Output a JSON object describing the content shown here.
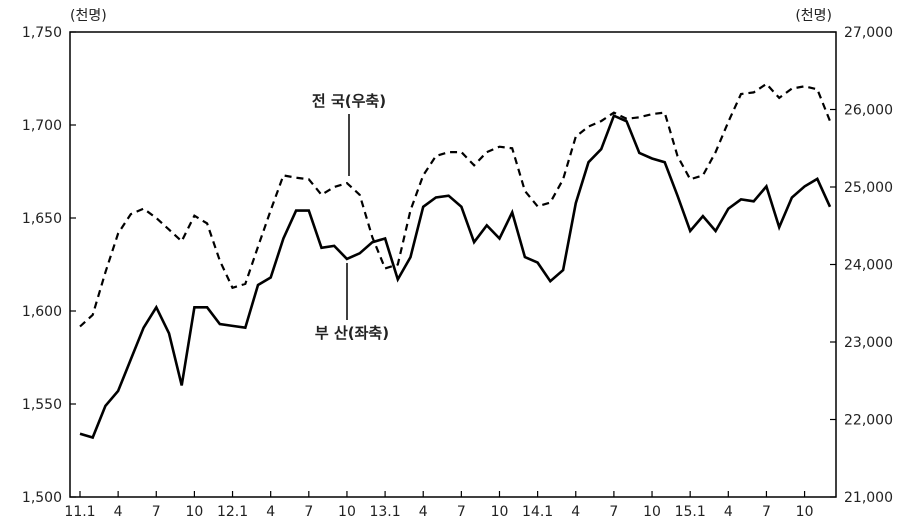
{
  "chart_data": {
    "type": "line",
    "left_unit": "(천명)",
    "right_unit": "(천명)",
    "x_tick_labels": [
      "11.1",
      "4",
      "7",
      "10",
      "12.1",
      "4",
      "7",
      "10",
      "13.1",
      "4",
      "7",
      "10",
      "14.1",
      "4",
      "7",
      "10",
      "15.1",
      "4",
      "7",
      "10"
    ],
    "y_left": {
      "min": 1500,
      "max": 1750,
      "ticks": [
        "1,500",
        "1,550",
        "1,600",
        "1,650",
        "1,700",
        "1,750"
      ],
      "tick_values": [
        1500,
        1550,
        1600,
        1650,
        1700,
        1750
      ]
    },
    "y_right": {
      "min": 21000,
      "max": 27000,
      "ticks": [
        "21,000",
        "22,000",
        "23,000",
        "24,000",
        "25,000",
        "26,000",
        "27,000"
      ],
      "tick_values": [
        21000,
        22000,
        23000,
        24000,
        25000,
        26000,
        27000
      ]
    },
    "annotations": {
      "national": "전 국(우축)",
      "busan": "부 산(좌축)"
    },
    "series": [
      {
        "name": "부 산(좌축)",
        "axis": "left",
        "style": "solid",
        "values": [
          1534,
          1532,
          1549,
          1557,
          1574,
          1591,
          1602,
          1588,
          1560,
          1602,
          1602,
          1593,
          1592,
          1591,
          1614,
          1618,
          1639,
          1654,
          1654,
          1634,
          1635,
          1628,
          1631,
          1637,
          1639,
          1617,
          1629,
          1656,
          1661,
          1662,
          1656,
          1637,
          1646,
          1639,
          1653,
          1629,
          1626,
          1616,
          1622,
          1658,
          1680,
          1687,
          1705,
          1702,
          1685,
          1682,
          1680,
          1662,
          1643,
          1651,
          1643,
          1655,
          1660,
          1659,
          1667,
          1645,
          1661,
          1667,
          1671,
          1656
        ]
      },
      {
        "name": "전 국(우축)",
        "axis": "right",
        "style": "dashed",
        "values": [
          23200,
          23350,
          23900,
          24400,
          24650,
          24720,
          24600,
          24450,
          24300,
          24630,
          24530,
          24050,
          23700,
          23750,
          24230,
          24700,
          25150,
          25120,
          25100,
          24900,
          25000,
          25050,
          24900,
          24350,
          23950,
          24000,
          24700,
          25150,
          25400,
          25450,
          25450,
          25280,
          25450,
          25520,
          25500,
          24950,
          24750,
          24800,
          25100,
          25650,
          25780,
          25850,
          25960,
          25880,
          25900,
          25940,
          25960,
          25400,
          25100,
          25150,
          25450,
          25840,
          26200,
          26220,
          26330,
          26150,
          26270,
          26300,
          26260,
          25850
        ]
      }
    ]
  }
}
